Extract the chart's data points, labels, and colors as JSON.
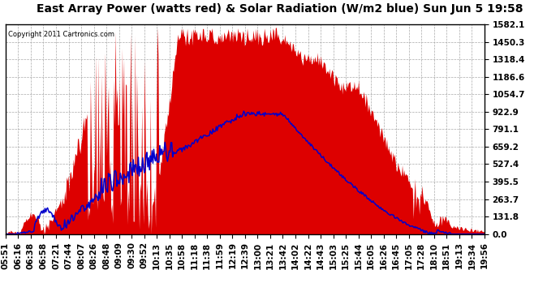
{
  "title": "East Array Power (watts red) & Solar Radiation (W/m2 blue) Sun Jun 5 19:58",
  "copyright": "Copyright 2011 Cartronics.com",
  "y_ticks": [
    0.0,
    131.8,
    263.7,
    395.5,
    527.4,
    659.2,
    791.1,
    922.9,
    1054.7,
    1186.6,
    1318.4,
    1450.3,
    1582.1
  ],
  "ylim": [
    0,
    1582.1
  ],
  "x_labels": [
    "05:51",
    "06:16",
    "06:38",
    "06:58",
    "07:21",
    "07:44",
    "08:07",
    "08:26",
    "08:48",
    "09:09",
    "09:30",
    "09:52",
    "10:13",
    "10:35",
    "10:58",
    "11:18",
    "11:38",
    "11:59",
    "12:19",
    "12:39",
    "13:00",
    "13:21",
    "13:42",
    "14:02",
    "14:22",
    "14:43",
    "15:03",
    "15:25",
    "15:44",
    "16:05",
    "16:26",
    "16:45",
    "17:05",
    "17:28",
    "18:10",
    "18:51",
    "19:13",
    "19:34",
    "19:56"
  ],
  "background_color": "#ffffff",
  "plot_bg_color": "#ffffff",
  "grid_color": "#aaaaaa",
  "red_color": "#dd0000",
  "blue_color": "#0000cc",
  "title_fontsize": 10,
  "tick_fontsize": 7.5
}
